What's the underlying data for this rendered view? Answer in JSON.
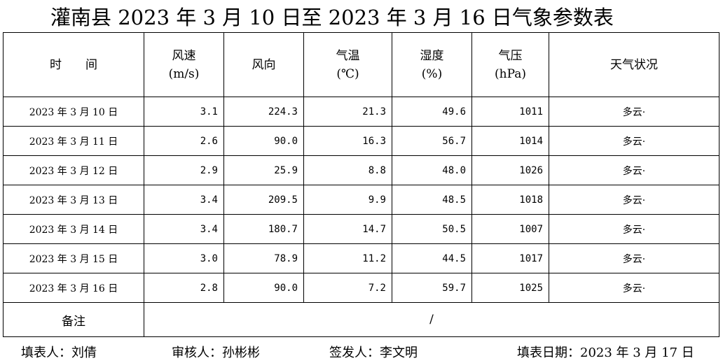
{
  "title": "灌南县 2023 年 3 月 10 日至 2023 年 3 月 16 日气象参数表",
  "table": {
    "header": [
      "时　　间",
      "风速\n(m/s)",
      "风向",
      "气温\n(℃)",
      "湿度\n(%)",
      "气压\n(hPa)",
      "天气状况"
    ],
    "rows": [
      [
        "2023 年 3 月 10 日",
        "3.1",
        "224.3",
        "21.3",
        "49.6",
        "1011",
        "多云·"
      ],
      [
        "2023 年 3 月 11 日",
        "2.6",
        "90.0",
        "16.3",
        "56.7",
        "1014",
        "多云·"
      ],
      [
        "2023 年 3 月 12 日",
        "2.9",
        "25.9",
        "8.8",
        "48.0",
        "1026",
        "多云·"
      ],
      [
        "2023 年 3 月 13 日",
        "3.4",
        "209.5",
        "9.9",
        "48.5",
        "1018",
        "多云·"
      ],
      [
        "2023 年 3 月 14 日",
        "3.4",
        "180.7",
        "14.7",
        "50.5",
        "1007",
        "多云·"
      ],
      [
        "2023 年 3 月 15 日",
        "3.0",
        "78.9",
        "11.2",
        "44.5",
        "1017",
        "多云·"
      ],
      [
        "2023 年 3 月 16 日",
        "2.8",
        "90.0",
        "7.2",
        "59.7",
        "1025",
        "多云·"
      ]
    ],
    "remark": {
      "label": "备注",
      "value": "/"
    }
  },
  "footer": {
    "filler": "填表人：刘倩",
    "reviewer": "审核人：孙彬彬",
    "issuer": "签发人：李文明",
    "date": "填表日期：2023 年 3 月 17 日"
  }
}
